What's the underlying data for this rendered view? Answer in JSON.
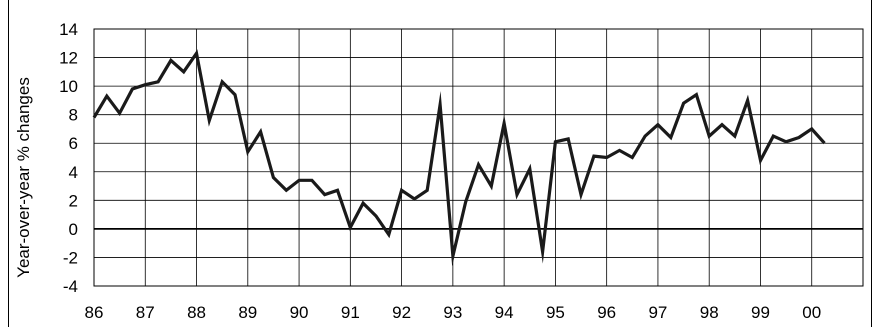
{
  "chart_data": {
    "type": "line",
    "title": "",
    "xlabel": "",
    "ylabel": "Year-over-year % changes",
    "ylim": [
      -4,
      14
    ],
    "yticks": [
      -4,
      -2,
      0,
      2,
      4,
      6,
      8,
      10,
      12,
      14
    ],
    "xlim": [
      1986,
      2001
    ],
    "xticks": [
      1986,
      1987,
      1988,
      1989,
      1990,
      1991,
      1992,
      1993,
      1994,
      1995,
      1996,
      1997,
      1998,
      1999,
      2000
    ],
    "xtick_labels": [
      "86",
      "87",
      "88",
      "89",
      "90",
      "91",
      "92",
      "93",
      "94",
      "95",
      "96",
      "97",
      "98",
      "99",
      "00"
    ],
    "grid": true,
    "zero_line": true,
    "line_color": "#1a1a1a",
    "series": [
      {
        "x": [
          1986.0,
          1986.25,
          1986.5,
          1986.75,
          1987.0,
          1987.25,
          1987.5,
          1987.75,
          1988.0,
          1988.25,
          1988.5,
          1988.75,
          1989.0,
          1989.25,
          1989.5,
          1989.75,
          1990.0,
          1990.25,
          1990.5,
          1990.75,
          1991.0,
          1991.25,
          1991.5,
          1991.75,
          1992.0,
          1992.25,
          1992.5,
          1992.75,
          1993.0,
          1993.25,
          1993.5,
          1993.75,
          1994.0,
          1994.25,
          1994.5,
          1994.75,
          1995.0,
          1995.25,
          1995.5,
          1995.75,
          1996.0,
          1996.25,
          1996.5,
          1996.75,
          1997.0,
          1997.25,
          1997.5,
          1997.75,
          1998.0,
          1998.25,
          1998.5,
          1998.75,
          1999.0,
          1999.25,
          1999.5,
          1999.75,
          2000.0,
          2000.25
        ],
        "y": [
          7.8,
          9.3,
          8.1,
          9.8,
          10.1,
          10.3,
          11.8,
          11.0,
          12.3,
          7.6,
          10.3,
          9.4,
          5.4,
          6.8,
          3.6,
          2.7,
          3.4,
          3.4,
          2.4,
          2.7,
          0.1,
          1.8,
          0.9,
          -0.4,
          2.7,
          2.1,
          2.7,
          8.7,
          -1.9,
          1.9,
          4.5,
          3.0,
          7.4,
          2.4,
          4.2,
          -1.6,
          6.1,
          6.3,
          2.4,
          5.1,
          5.0,
          5.5,
          5.0,
          6.5,
          7.3,
          6.4,
          8.8,
          9.4,
          6.5,
          7.3,
          6.5,
          9.0,
          4.8,
          6.5,
          6.1,
          6.4,
          7.0,
          6.0
        ]
      }
    ]
  }
}
